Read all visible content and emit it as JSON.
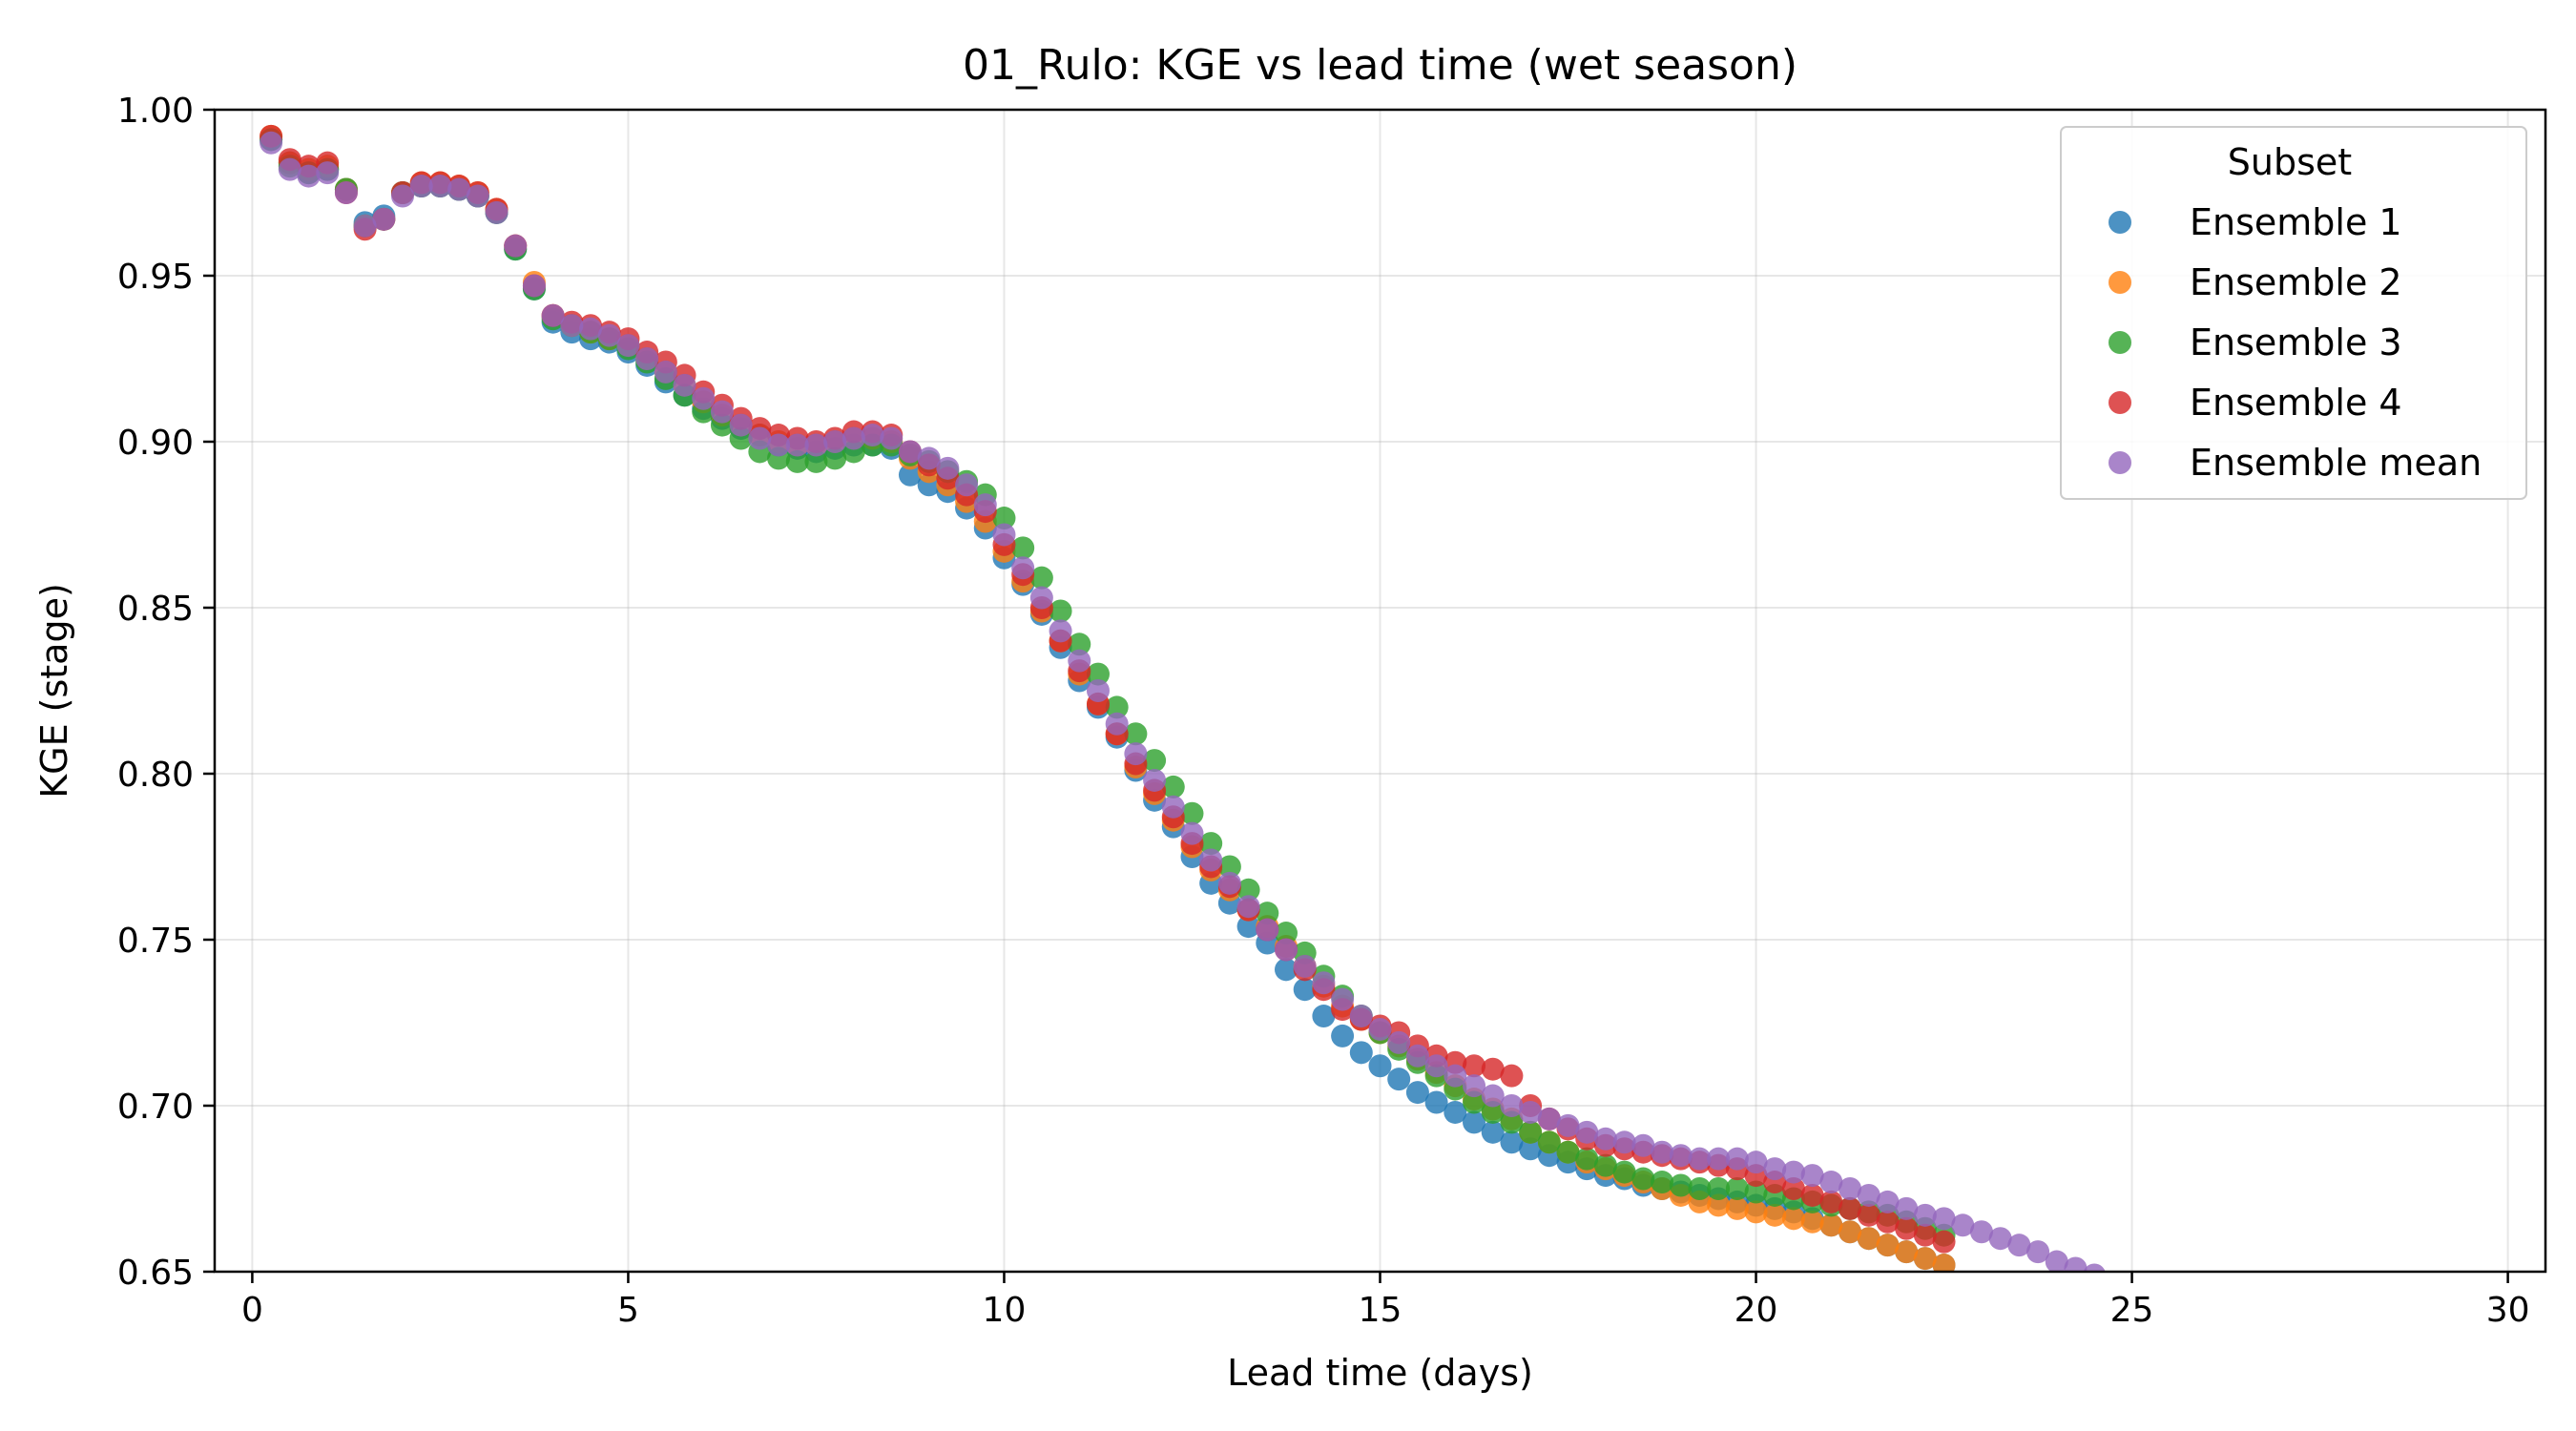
{
  "chart_data": {
    "type": "scatter",
    "title": "01_Rulo: KGE vs lead time (wet season)",
    "xlabel": "Lead time (days)",
    "ylabel": "KGE (stage)",
    "xlim": [
      -0.5,
      30.5
    ],
    "ylim": [
      0.65,
      1.0
    ],
    "xticks": [
      0,
      5,
      10,
      15,
      20,
      25,
      30
    ],
    "yticks": [
      0.65,
      0.7,
      0.75,
      0.8,
      0.85,
      0.9,
      0.95,
      1.0
    ],
    "xtick_labels": [
      "0",
      "5",
      "10",
      "15",
      "20",
      "25",
      "30"
    ],
    "ytick_labels": [
      "0.65",
      "0.70",
      "0.75",
      "0.80",
      "0.85",
      "0.90",
      "0.95",
      "1.00"
    ],
    "grid": true,
    "legend_title": "Subset",
    "legend_position": "top-right",
    "x_step_days": 0.25,
    "x_start": 0.25,
    "series": [
      {
        "name": "Ensemble 1",
        "color": "#1f77b4",
        "values": [
          0.991,
          0.984,
          0.981,
          0.982,
          0.976,
          0.966,
          0.968,
          0.975,
          0.977,
          0.977,
          0.976,
          0.974,
          0.969,
          0.958,
          0.946,
          0.936,
          0.933,
          0.931,
          0.93,
          0.927,
          0.923,
          0.918,
          0.914,
          0.91,
          0.907,
          0.904,
          0.902,
          0.899,
          0.898,
          0.897,
          0.898,
          0.899,
          0.899,
          0.898,
          0.89,
          0.887,
          0.885,
          0.88,
          0.874,
          0.865,
          0.857,
          0.848,
          0.838,
          0.828,
          0.82,
          0.811,
          0.801,
          0.792,
          0.784,
          0.775,
          0.767,
          0.761,
          0.754,
          0.749,
          0.741,
          0.735,
          0.727,
          0.721,
          0.716,
          0.712,
          0.708,
          0.704,
          0.701,
          0.698,
          0.695,
          0.692,
          0.689,
          0.687,
          0.685,
          0.683,
          0.681,
          0.679,
          0.678,
          0.676,
          0.675,
          0.674,
          0.673,
          0.672,
          0.671,
          0.67,
          0.669,
          0.668,
          0.666,
          0.664,
          0.662,
          0.66,
          0.658,
          0.656,
          0.654,
          0.652
        ]
      },
      {
        "name": "Ensemble 2",
        "color": "#ff7f0e",
        "values": [
          0.992,
          0.984,
          0.982,
          0.983,
          0.976,
          0.965,
          0.967,
          0.975,
          0.978,
          0.978,
          0.977,
          0.975,
          0.97,
          0.959,
          0.948,
          0.938,
          0.935,
          0.933,
          0.931,
          0.929,
          0.925,
          0.921,
          0.917,
          0.912,
          0.908,
          0.905,
          0.902,
          0.9,
          0.899,
          0.899,
          0.9,
          0.901,
          0.901,
          0.9,
          0.895,
          0.891,
          0.887,
          0.882,
          0.876,
          0.867,
          0.858,
          0.849,
          0.84,
          0.83,
          0.821,
          0.812,
          0.802,
          0.794,
          0.786,
          0.778,
          0.771,
          0.765,
          0.759,
          0.754,
          0.748,
          0.742,
          0.736,
          0.73,
          0.726,
          0.722,
          0.718,
          0.714,
          0.71,
          0.706,
          0.702,
          0.699,
          0.696,
          0.692,
          0.689,
          0.686,
          0.683,
          0.681,
          0.679,
          0.677,
          0.675,
          0.673,
          0.671,
          0.67,
          0.669,
          0.668,
          0.667,
          0.666,
          0.665,
          0.664,
          0.662,
          0.66,
          0.658,
          0.656,
          0.654,
          0.652
        ]
      },
      {
        "name": "Ensemble 3",
        "color": "#2ca02c",
        "values": [
          0.991,
          0.983,
          0.981,
          0.982,
          0.976,
          0.965,
          0.967,
          0.975,
          0.977,
          0.977,
          0.976,
          0.974,
          0.969,
          0.958,
          0.946,
          0.937,
          0.935,
          0.933,
          0.931,
          0.928,
          0.924,
          0.919,
          0.914,
          0.909,
          0.905,
          0.901,
          0.897,
          0.895,
          0.894,
          0.894,
          0.895,
          0.897,
          0.899,
          0.899,
          0.896,
          0.894,
          0.891,
          0.888,
          0.884,
          0.877,
          0.868,
          0.859,
          0.849,
          0.839,
          0.83,
          0.82,
          0.812,
          0.804,
          0.796,
          0.788,
          0.779,
          0.772,
          0.765,
          0.758,
          0.752,
          0.746,
          0.739,
          0.733,
          0.727,
          0.722,
          0.717,
          0.713,
          0.709,
          0.705,
          0.701,
          0.698,
          0.695,
          0.692,
          0.689,
          0.686,
          0.684,
          0.682,
          0.68,
          0.678,
          0.677,
          0.676,
          0.675,
          0.675,
          0.675,
          0.674,
          0.673,
          0.672,
          0.671,
          0.67,
          0.669,
          0.668,
          0.667,
          0.665,
          0.663,
          0.661
        ]
      },
      {
        "name": "Ensemble 4",
        "color": "#d62728",
        "values": [
          0.992,
          0.985,
          0.983,
          0.984,
          0.975,
          0.964,
          0.967,
          0.975,
          0.978,
          0.978,
          0.977,
          0.975,
          0.97,
          0.959,
          0.947,
          0.938,
          0.936,
          0.935,
          0.933,
          0.931,
          0.927,
          0.924,
          0.92,
          0.915,
          0.911,
          0.907,
          0.904,
          0.902,
          0.901,
          0.9,
          0.901,
          0.903,
          0.903,
          0.902,
          0.897,
          0.893,
          0.889,
          0.884,
          0.879,
          0.869,
          0.86,
          0.85,
          0.84,
          0.831,
          0.821,
          0.812,
          0.803,
          0.795,
          0.787,
          0.779,
          0.772,
          0.766,
          0.759,
          0.753,
          0.747,
          0.741,
          0.735,
          0.729,
          0.726,
          0.724,
          0.722,
          0.718,
          0.715,
          0.713,
          0.712,
          0.711,
          0.709,
          0.7,
          0.696,
          0.693,
          0.69,
          0.688,
          0.687,
          0.686,
          0.685,
          0.684,
          0.683,
          0.682,
          0.681,
          0.679,
          0.677,
          0.675,
          0.673,
          0.671,
          0.669,
          0.667,
          0.665,
          0.663,
          0.661,
          0.659
        ]
      },
      {
        "name": "Ensemble mean",
        "color": "#9467bd",
        "values": [
          0.99,
          0.982,
          0.98,
          0.981,
          0.975,
          0.965,
          0.967,
          0.974,
          0.977,
          0.977,
          0.976,
          0.974,
          0.969,
          0.959,
          0.947,
          0.938,
          0.935,
          0.934,
          0.932,
          0.929,
          0.925,
          0.921,
          0.917,
          0.913,
          0.909,
          0.905,
          0.901,
          0.899,
          0.899,
          0.899,
          0.9,
          0.901,
          0.902,
          0.901,
          0.897,
          0.895,
          0.892,
          0.887,
          0.881,
          0.872,
          0.862,
          0.853,
          0.843,
          0.834,
          0.825,
          0.815,
          0.806,
          0.798,
          0.79,
          0.782,
          0.774,
          0.767,
          0.76,
          0.753,
          0.747,
          0.742,
          0.737,
          0.732,
          0.727,
          0.723,
          0.719,
          0.715,
          0.712,
          0.709,
          0.706,
          0.703,
          0.7,
          0.698,
          0.696,
          0.694,
          0.692,
          0.69,
          0.689,
          0.688,
          0.686,
          0.685,
          0.684,
          0.684,
          0.684,
          0.683,
          0.681,
          0.68,
          0.679,
          0.677,
          0.675,
          0.673,
          0.671,
          0.669,
          0.667,
          0.666,
          0.664,
          0.662,
          0.66,
          0.658,
          0.656,
          0.653,
          0.651,
          0.649
        ]
      }
    ]
  }
}
